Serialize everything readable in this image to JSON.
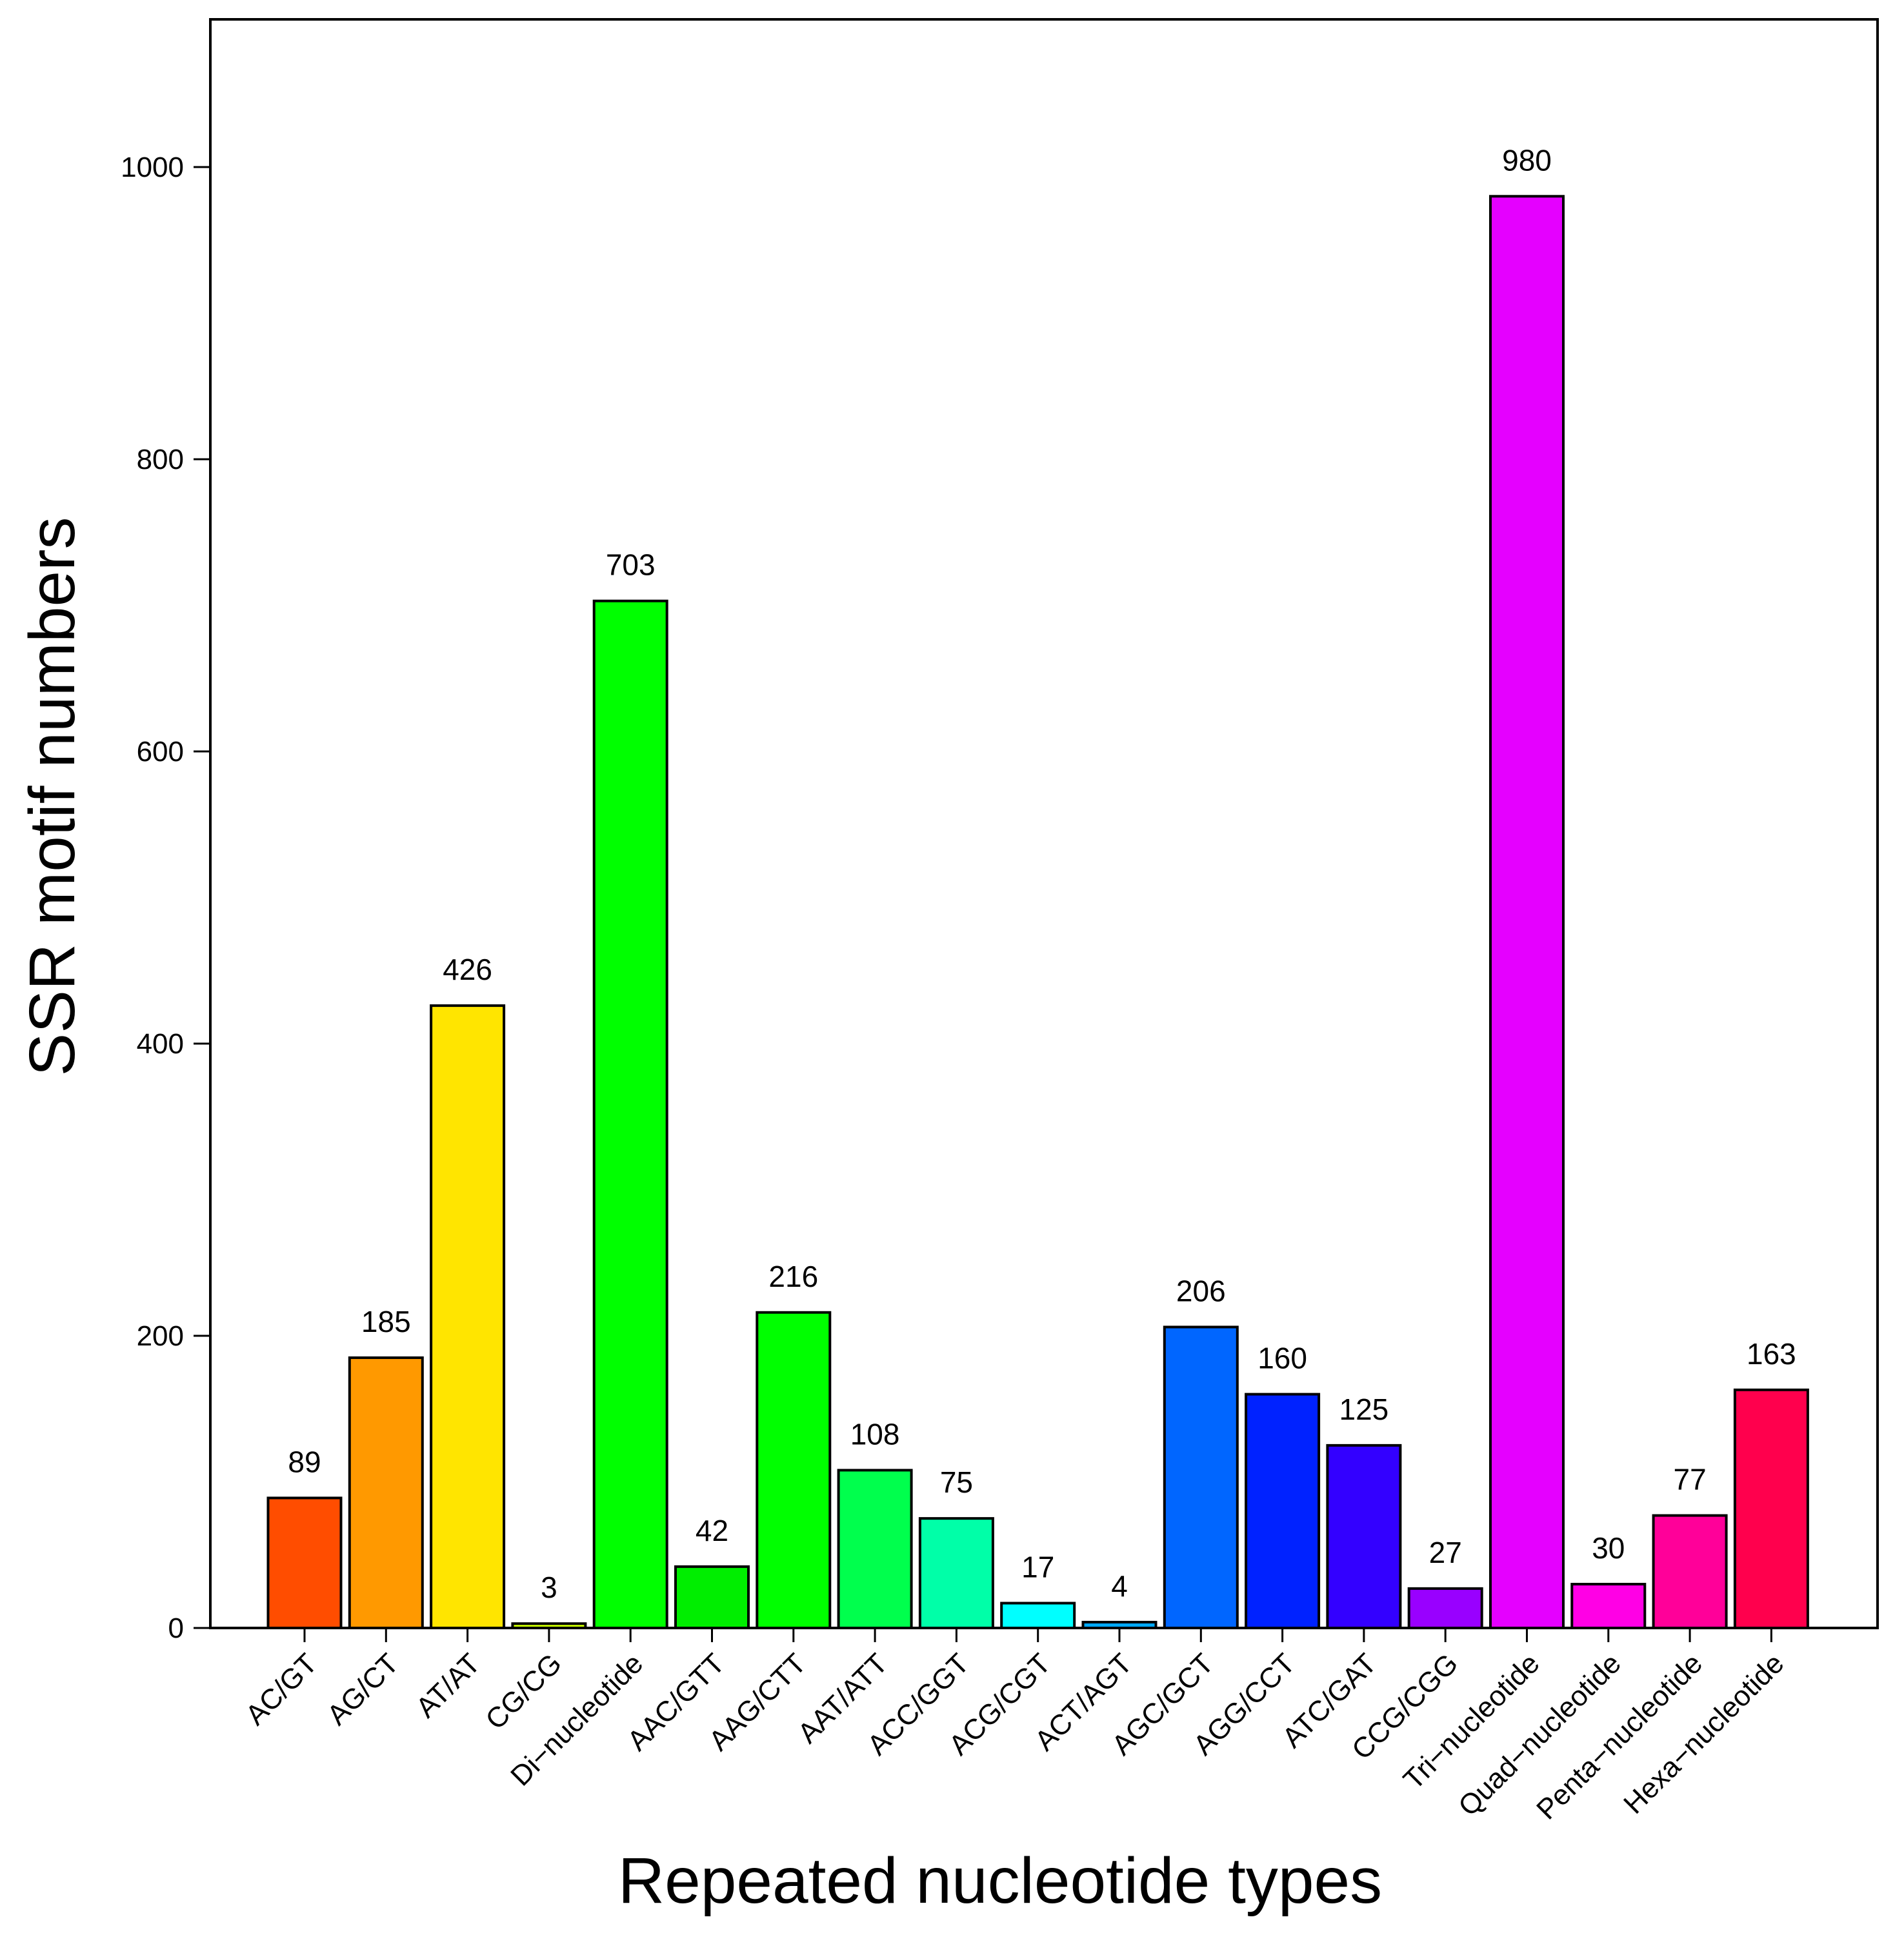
{
  "chart_data": {
    "type": "bar",
    "title": "",
    "xlabel": "Repeated nucleotide types",
    "ylabel": "SSR motif numbers",
    "ylim": [
      0,
      1100
    ],
    "yticks": [
      0,
      200,
      400,
      600,
      800,
      1000
    ],
    "ytick_labels": [
      "0",
      "200",
      "400",
      "600",
      "800",
      "1000"
    ],
    "grid": false,
    "categories": [
      "AC/GT",
      "AG/CT",
      "AT/AT",
      "CG/CG",
      "Di−nucleotide",
      "AAC/GTT",
      "AAG/CTT",
      "AAT/ATT",
      "ACC/GGT",
      "ACG/CGT",
      "ACT/AGT",
      "AGC/GCT",
      "AGG/CCT",
      "ATC/GAT",
      "CCG/CGG",
      "Tri−nucleotide",
      "Quad−nucleotide",
      "Penta−nucleotide",
      "Hexa−nucleotide"
    ],
    "values": [
      89,
      185,
      426,
      3,
      703,
      42,
      216,
      108,
      75,
      17,
      4,
      206,
      160,
      125,
      27,
      980,
      30,
      77,
      163
    ],
    "value_labels": [
      "89",
      "185",
      "426",
      "3",
      "703",
      "42",
      "216",
      "108",
      "75",
      "17",
      "4",
      "206",
      "160",
      "125",
      "27",
      "980",
      "30",
      "77",
      "163"
    ],
    "colors": [
      "#ff4d00",
      "#ff9900",
      "#ffe500",
      "#ccff00",
      "#00ff00",
      "#00ee00",
      "#00ff00",
      "#00ff4d",
      "#00ffa8",
      "#00ffff",
      "#00a8ff",
      "#0066ff",
      "#0022ff",
      "#3300ff",
      "#9900ff",
      "#e500ff",
      "#ff00e5",
      "#ff0099",
      "#ff004d"
    ]
  }
}
